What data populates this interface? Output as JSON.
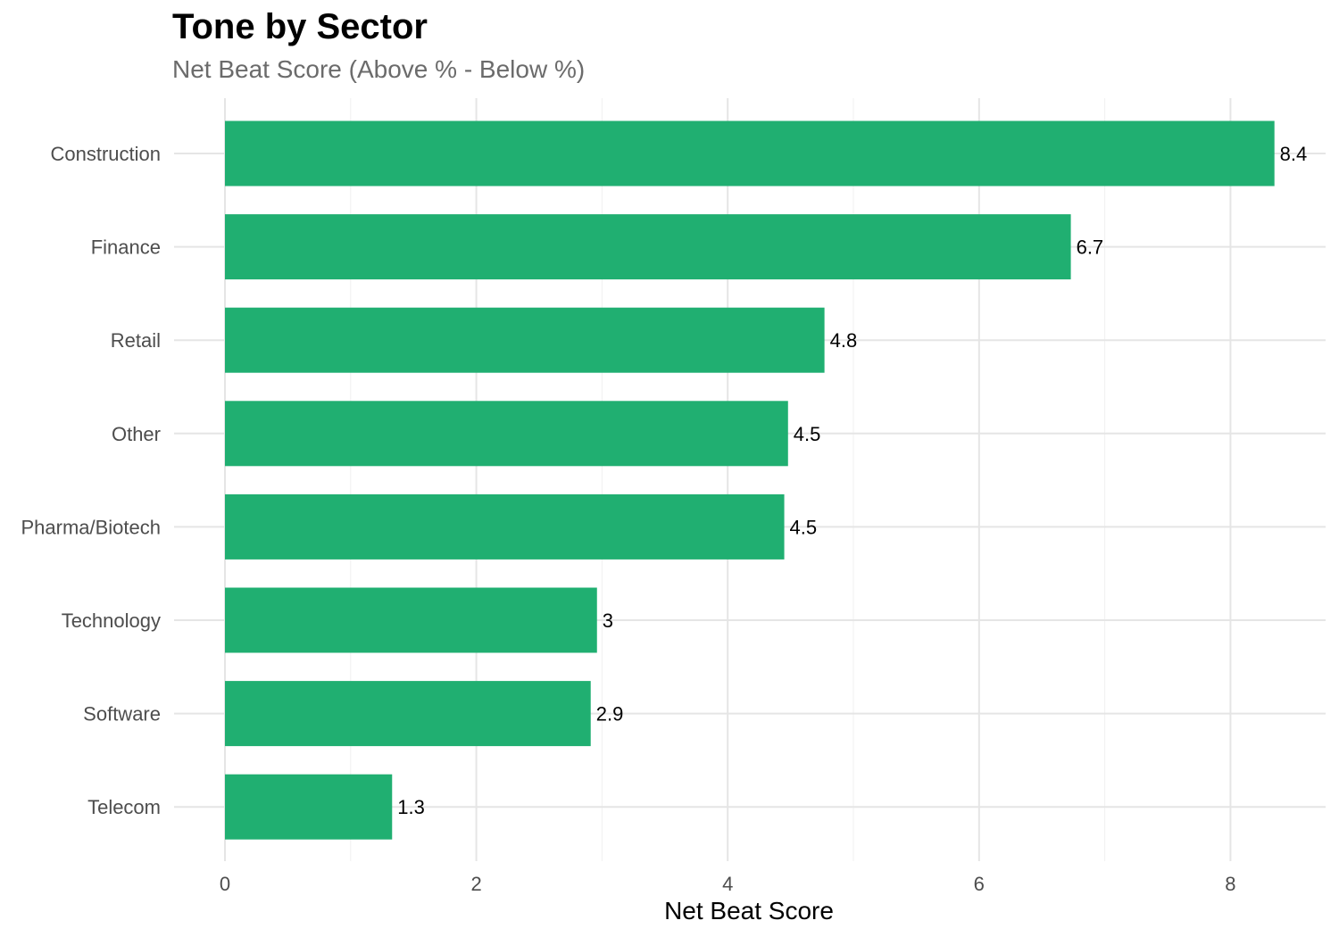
{
  "chart_data": {
    "type": "bar",
    "orientation": "horizontal",
    "title": "Tone by Sector",
    "subtitle": "Net Beat Score (Above % - Below %)",
    "xlabel": "Net Beat Score",
    "ylabel": "",
    "categories": [
      "Construction",
      "Finance",
      "Retail",
      "Other",
      "Pharma/Biotech",
      "Technology",
      "Software",
      "Telecom"
    ],
    "values": [
      8.35,
      6.73,
      4.77,
      4.48,
      4.45,
      2.96,
      2.91,
      1.33
    ],
    "data_labels": [
      "8.4",
      "6.7",
      "4.8",
      "4.5",
      "4.5",
      "3",
      "2.9",
      "1.3"
    ],
    "xlim": [
      -0.4,
      8.6
    ],
    "x_ticks": [
      0,
      2,
      4,
      6,
      8
    ],
    "x_tick_labels": [
      "0",
      "2",
      "4",
      "6",
      "8"
    ],
    "bar_color": "#20AF71",
    "grid": true,
    "legend": "none"
  }
}
